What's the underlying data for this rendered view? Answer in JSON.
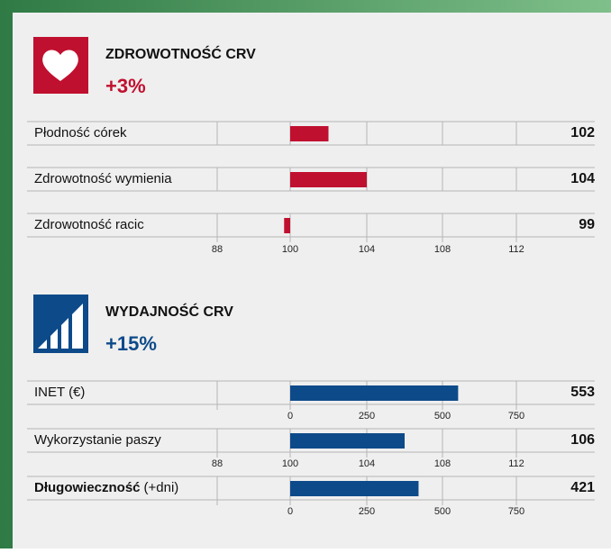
{
  "sections": [
    {
      "title": "ZDROWOTNOŚĆ CRV",
      "change": "+3%",
      "color": "#c0102f",
      "ticks": [
        88,
        100,
        104,
        108,
        112
      ],
      "rows": [
        {
          "label": "Płodność córek",
          "value": 102
        },
        {
          "label": "Zdrowotność wymienia",
          "value": 104
        },
        {
          "label": "Zdrowotność racic",
          "value": 99
        }
      ]
    },
    {
      "title": "WYDAJNOŚĆ CRV",
      "change": "+15%",
      "color": "#0d4a8a",
      "rows": [
        {
          "label": "INET (€)",
          "value": 553,
          "ticks": [
            0,
            250,
            500,
            750
          ]
        },
        {
          "label": "Wykorzystanie paszy",
          "value": 106,
          "ticks": [
            88,
            100,
            104,
            108,
            112
          ]
        },
        {
          "label": "Długowieczność",
          "label_suffix": "(+dni)",
          "value": 421,
          "ticks": [
            0,
            250,
            500,
            750
          ]
        }
      ]
    }
  ]
}
